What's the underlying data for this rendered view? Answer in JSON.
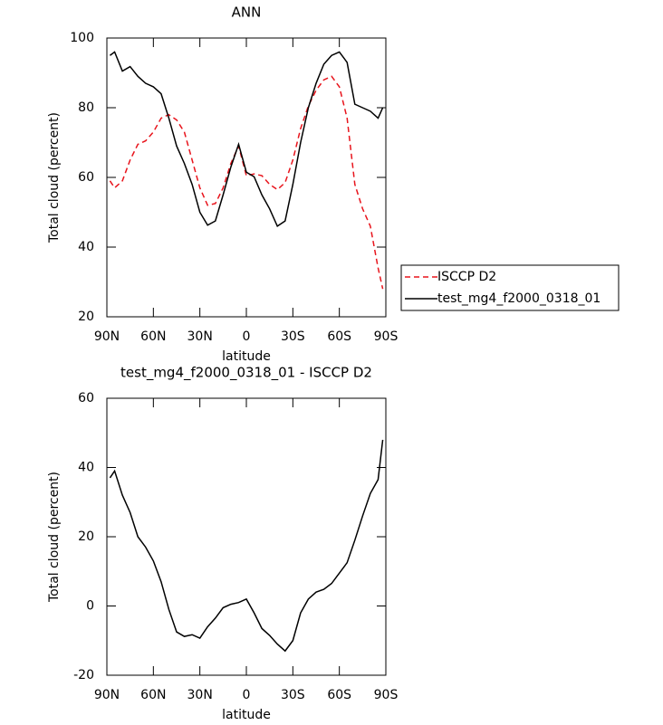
{
  "chart_data": [
    {
      "type": "line",
      "title": "ANN",
      "x_label": "latitude",
      "y_label": "Total cloud (percent)",
      "x": [
        88,
        85,
        80,
        75,
        70,
        65,
        60,
        55,
        50,
        45,
        40,
        35,
        30,
        25,
        20,
        15,
        10,
        5,
        0,
        -5,
        -10,
        -15,
        -20,
        -25,
        -30,
        -35,
        -40,
        -45,
        -50,
        -55,
        -60,
        -65,
        -70,
        -75,
        -80,
        -85,
        -88
      ],
      "series": [
        {
          "name": "ISCCP D2",
          "color": "#e8141c",
          "line_style": "dashed",
          "values": [
            59,
            57,
            59,
            65,
            69.5,
            70.5,
            73,
            77,
            78,
            76.5,
            73,
            65,
            57,
            52,
            52.5,
            57,
            64,
            69,
            60.5,
            61,
            60.5,
            58,
            56.5,
            58.5,
            65,
            74,
            80.5,
            85,
            88,
            89,
            86,
            77,
            58,
            51,
            46,
            34,
            28
          ]
        },
        {
          "name": "test_mg4_f2000_0318_01",
          "color": "#000000",
          "line_style": "solid",
          "values": [
            95,
            96,
            90.5,
            91.8,
            89,
            87,
            86,
            84,
            77,
            69,
            64,
            58,
            50,
            46.3,
            47.5,
            55,
            63,
            69.5,
            61.5,
            60.2,
            55,
            51,
            46,
            47.5,
            58,
            70,
            80,
            87,
            92.5,
            95,
            96,
            93,
            81,
            80,
            79,
            77,
            80
          ]
        }
      ],
      "xlim": [
        90,
        -90
      ],
      "xticks": [
        {
          "value": 90,
          "label": "90N"
        },
        {
          "value": 60,
          "label": "60N"
        },
        {
          "value": 30,
          "label": "30N"
        },
        0,
        {
          "value": -30,
          "label": "30S"
        },
        {
          "value": -60,
          "label": "60S"
        },
        {
          "value": -90,
          "label": "90S"
        }
      ],
      "ylim": [
        20,
        100
      ],
      "yticks": [
        20,
        40,
        60,
        80,
        100
      ],
      "legend": "right"
    },
    {
      "type": "line",
      "title": "test_mg4_f2000_0318_01 - ISCCP D2",
      "x_label": "latitude",
      "y_label": "Total cloud (percent)",
      "x": [
        88,
        85,
        80,
        75,
        70,
        65,
        60,
        55,
        50,
        45,
        40,
        35,
        30,
        25,
        20,
        15,
        10,
        5,
        0,
        -5,
        -10,
        -15,
        -20,
        -25,
        -30,
        -35,
        -40,
        -45,
        -50,
        -55,
        -60,
        -65,
        -70,
        -75,
        -80,
        -85,
        -88
      ],
      "values": [
        37,
        39,
        32,
        27,
        20,
        17,
        13,
        7,
        -1,
        -7.5,
        -8.8,
        -8.3,
        -9.3,
        -6,
        -3.5,
        -0.5,
        0.5,
        1,
        2,
        -2,
        -6.5,
        -8.5,
        -11,
        -13,
        -10,
        -2,
        2,
        4,
        4.8,
        6.5,
        9.5,
        12.5,
        19,
        26,
        32.5,
        36.5,
        48
      ],
      "color": "#000000",
      "xlim": [
        90,
        -90
      ],
      "xticks": [
        {
          "value": 90,
          "label": "90N"
        },
        {
          "value": 60,
          "label": "60N"
        },
        {
          "value": 30,
          "label": "30N"
        },
        0,
        {
          "value": -30,
          "label": "30S"
        },
        {
          "value": -60,
          "label": "60S"
        },
        {
          "value": -90,
          "label": "90S"
        }
      ],
      "ylim": [
        -20,
        60
      ],
      "yticks": [
        -20,
        0,
        20,
        40,
        60
      ]
    }
  ]
}
